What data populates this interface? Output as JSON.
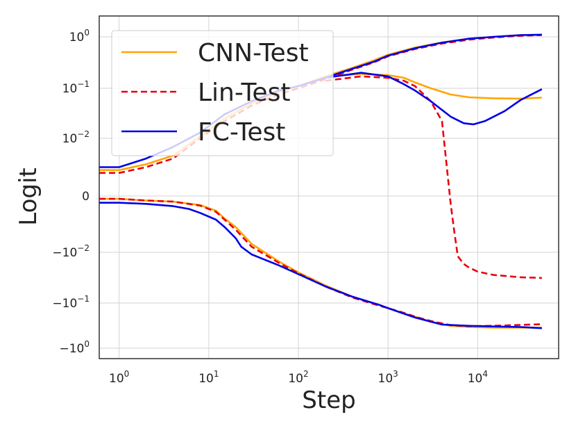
{
  "chart_data": {
    "type": "line",
    "title": "",
    "xlabel": "Step",
    "ylabel": "Logit",
    "xscale": "log",
    "yscale": "symlog",
    "xlim": [
      0.6,
      80000
    ],
    "x_ticks": [
      {
        "value": 1,
        "label": "10",
        "exp": "0"
      },
      {
        "value": 10,
        "label": "10",
        "exp": "1"
      },
      {
        "value": 100,
        "label": "10",
        "exp": "2"
      },
      {
        "value": 1000,
        "label": "10",
        "exp": "3"
      },
      {
        "value": 10000,
        "label": "10",
        "exp": "4"
      }
    ],
    "y_ticks": [
      {
        "value": 1,
        "label": "10",
        "exp": "0"
      },
      {
        "value": 0.1,
        "label": "10",
        "exp": "−1"
      },
      {
        "value": 0.01,
        "label": "10",
        "exp": "−2"
      },
      {
        "value": 0,
        "label": "0",
        "exp": ""
      },
      {
        "value": -0.01,
        "label": "−10",
        "exp": "−2"
      },
      {
        "value": -0.1,
        "label": "−10",
        "exp": "−1"
      },
      {
        "value": -1,
        "label": "−10",
        "exp": "0"
      }
    ],
    "grid": true,
    "legend_position": "top-left",
    "series": [
      {
        "name": "CNN-Test",
        "color": "#FFA500",
        "dash": "solid",
        "upper": [
          [
            0.6,
            0.0045
          ],
          [
            1,
            0.0045
          ],
          [
            2,
            0.0055
          ],
          [
            4,
            0.007
          ],
          [
            8,
            0.011
          ],
          [
            15,
            0.025
          ],
          [
            30,
            0.05
          ],
          [
            60,
            0.085
          ],
          [
            100,
            0.11
          ],
          [
            200,
            0.17
          ],
          [
            400,
            0.25
          ],
          [
            700,
            0.35
          ],
          [
            1000,
            0.45
          ],
          [
            2000,
            0.62
          ],
          [
            4000,
            0.78
          ],
          [
            8000,
            0.92
          ],
          [
            15000,
            1.0
          ],
          [
            30000,
            1.08
          ],
          [
            52000,
            1.1
          ]
        ],
        "lower": [
          [
            0.6,
            -0.0005
          ],
          [
            1,
            -0.0005
          ],
          [
            2,
            -0.0008
          ],
          [
            4,
            -0.001
          ],
          [
            8,
            -0.0016
          ],
          [
            12,
            -0.0026
          ],
          [
            15,
            -0.004
          ],
          [
            20,
            -0.0055
          ],
          [
            30,
            -0.0085
          ],
          [
            60,
            -0.015
          ],
          [
            100,
            -0.025
          ],
          [
            200,
            -0.045
          ],
          [
            400,
            -0.075
          ],
          [
            800,
            -0.11
          ],
          [
            1000,
            -0.13
          ],
          [
            1500,
            -0.17
          ],
          [
            2000,
            -0.2
          ],
          [
            3000,
            -0.26
          ],
          [
            5000,
            -0.32
          ],
          [
            8000,
            -0.34
          ],
          [
            15000,
            -0.35
          ],
          [
            52000,
            -0.35
          ]
        ],
        "mid": [
          [
            200,
            0.17
          ],
          [
            500,
            0.19
          ],
          [
            1000,
            0.18
          ],
          [
            1500,
            0.16
          ],
          [
            2000,
            0.13
          ],
          [
            3000,
            0.1
          ],
          [
            5000,
            0.075
          ],
          [
            8000,
            0.066
          ],
          [
            15000,
            0.063
          ],
          [
            30000,
            0.062
          ],
          [
            52000,
            0.065
          ]
        ]
      },
      {
        "name": "Lin-Test",
        "color": "#E8000B",
        "dash": "dashed",
        "upper": [
          [
            0.6,
            0.004
          ],
          [
            1,
            0.004
          ],
          [
            2,
            0.005
          ],
          [
            4,
            0.0065
          ],
          [
            8,
            0.01
          ],
          [
            15,
            0.022
          ],
          [
            30,
            0.045
          ],
          [
            60,
            0.075
          ],
          [
            100,
            0.1
          ],
          [
            200,
            0.15
          ],
          [
            400,
            0.23
          ],
          [
            700,
            0.32
          ],
          [
            1000,
            0.42
          ],
          [
            2000,
            0.58
          ],
          [
            4000,
            0.74
          ],
          [
            8000,
            0.88
          ],
          [
            15000,
            0.97
          ],
          [
            30000,
            1.05
          ],
          [
            52000,
            1.08
          ]
        ],
        "lower": [
          [
            0.6,
            -0.0005
          ],
          [
            1,
            -0.0005
          ],
          [
            2,
            -0.0008
          ],
          [
            4,
            -0.001
          ],
          [
            8,
            -0.0017
          ],
          [
            12,
            -0.0028
          ],
          [
            15,
            -0.0042
          ],
          [
            20,
            -0.006
          ],
          [
            30,
            -0.009
          ],
          [
            60,
            -0.016
          ],
          [
            100,
            -0.026
          ],
          [
            200,
            -0.047
          ],
          [
            400,
            -0.078
          ],
          [
            800,
            -0.115
          ],
          [
            1000,
            -0.13
          ],
          [
            1500,
            -0.165
          ],
          [
            2000,
            -0.2
          ],
          [
            3000,
            -0.25
          ],
          [
            5000,
            -0.31
          ],
          [
            8000,
            -0.325
          ],
          [
            15000,
            -0.32
          ],
          [
            30000,
            -0.305
          ],
          [
            52000,
            -0.295
          ]
        ],
        "mid": [
          [
            200,
            0.14
          ],
          [
            500,
            0.17
          ],
          [
            1000,
            0.16
          ],
          [
            1500,
            0.14
          ],
          [
            2000,
            0.11
          ],
          [
            3000,
            0.055
          ],
          [
            4000,
            0.022
          ],
          [
            5000,
            -0.0015
          ],
          [
            5500,
            -0.0065
          ],
          [
            6000,
            -0.012
          ],
          [
            7000,
            -0.017
          ],
          [
            8000,
            -0.02
          ],
          [
            10000,
            -0.024
          ],
          [
            15000,
            -0.028
          ],
          [
            30000,
            -0.031
          ],
          [
            52000,
            -0.032
          ]
        ]
      },
      {
        "name": "FC-Test",
        "color": "#0000E6",
        "dash": "solid",
        "upper": [
          [
            0.6,
            0.005
          ],
          [
            1,
            0.005
          ],
          [
            2,
            0.0065
          ],
          [
            4,
            0.0085
          ],
          [
            8,
            0.013
          ],
          [
            15,
            0.03
          ],
          [
            30,
            0.055
          ],
          [
            60,
            0.09
          ],
          [
            100,
            0.11
          ],
          [
            200,
            0.16
          ],
          [
            400,
            0.24
          ],
          [
            700,
            0.33
          ],
          [
            1000,
            0.43
          ],
          [
            2000,
            0.6
          ],
          [
            4000,
            0.77
          ],
          [
            8000,
            0.92
          ],
          [
            15000,
            1.0
          ],
          [
            30000,
            1.08
          ],
          [
            52000,
            1.1
          ]
        ],
        "lower": [
          [
            0.6,
            -0.0012
          ],
          [
            1,
            -0.0012
          ],
          [
            2,
            -0.0014
          ],
          [
            4,
            -0.0018
          ],
          [
            6,
            -0.0023
          ],
          [
            8,
            -0.003
          ],
          [
            12,
            -0.0042
          ],
          [
            15,
            -0.0055
          ],
          [
            20,
            -0.0075
          ],
          [
            23,
            -0.009
          ],
          [
            30,
            -0.011
          ],
          [
            60,
            -0.018
          ],
          [
            100,
            -0.027
          ],
          [
            200,
            -0.047
          ],
          [
            400,
            -0.075
          ],
          [
            800,
            -0.11
          ],
          [
            1000,
            -0.13
          ],
          [
            2000,
            -0.21
          ],
          [
            4000,
            -0.3
          ],
          [
            8000,
            -0.32
          ],
          [
            15000,
            -0.33
          ],
          [
            30000,
            -0.34
          ],
          [
            52000,
            -0.36
          ]
        ],
        "mid": [
          [
            200,
            0.16
          ],
          [
            500,
            0.2
          ],
          [
            1000,
            0.17
          ],
          [
            1500,
            0.12
          ],
          [
            2000,
            0.09
          ],
          [
            3000,
            0.055
          ],
          [
            5000,
            0.027
          ],
          [
            7000,
            0.02
          ],
          [
            9000,
            0.019
          ],
          [
            12000,
            0.022
          ],
          [
            20000,
            0.035
          ],
          [
            30000,
            0.058
          ],
          [
            52000,
            0.096
          ]
        ]
      }
    ]
  }
}
